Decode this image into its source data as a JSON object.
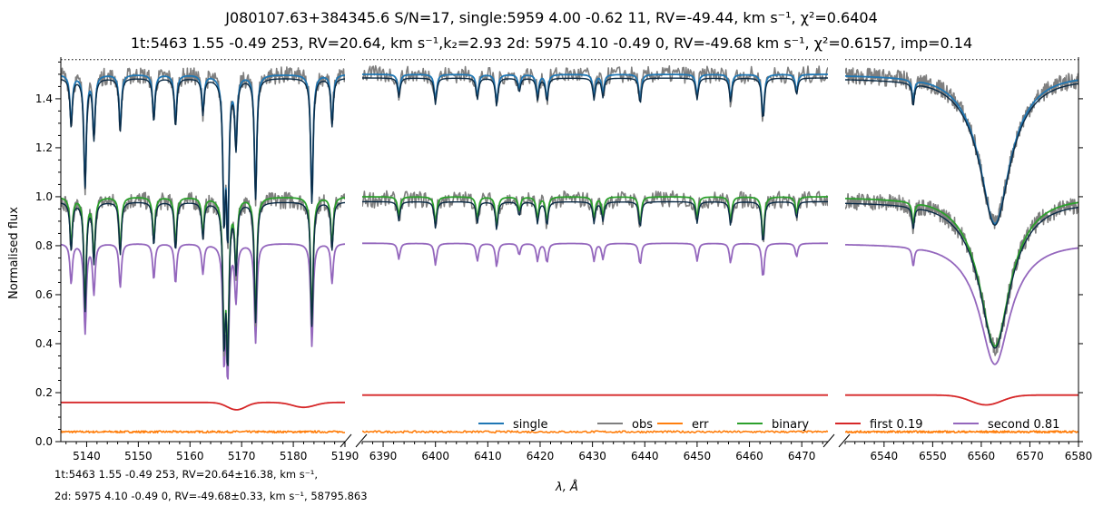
{
  "title": {
    "line1": "J080107.63+384345.6 S/N=17,      single:5959 4.00 -0.62 11, RV=-49.44, km s⁻¹, χ²=0.6404",
    "line2": "1t:5463 1.55 -0.49 253, RV=20.64, km s⁻¹,k₂=2.93 2d: 5975 4.10 -0.49 0, RV=-49.68 km s⁻¹, χ²=0.6157, imp=0.14"
  },
  "footnote": {
    "line1": "1t:5463 1.55 -0.49 253, RV=20.64±16.38, km s⁻¹,",
    "line2": "2d: 5975 4.10 -0.49 0, RV=-49.68±0.33, km s⁻¹, 58795.863"
  },
  "colors": {
    "single": "#1f77b4",
    "obs": "#7f7f7f",
    "err": "#ff7f0e",
    "binary": "#2ca02c",
    "first": "#d62728",
    "second": "#9467bd",
    "dark_overlay": "#0a2a45"
  },
  "chart_data": {
    "type": "line",
    "xlabel": "λ, Å",
    "ylabel": "Normalised flux",
    "ylim": [
      0,
      1.57
    ],
    "yticks": [
      0.0,
      0.2,
      0.4,
      0.6,
      0.8,
      1.0,
      1.2,
      1.4
    ],
    "ytick_labels": [
      "0.0",
      "0.2",
      "0.4",
      "0.6",
      "0.8",
      "1.0",
      "1.2",
      "1.4"
    ],
    "dotted_reference_y": 1.56,
    "grid": false,
    "legend_location": "lower right",
    "legend": [
      "single",
      "obs",
      "err",
      "binary",
      "first 0.19",
      "second 0.81"
    ],
    "panels": [
      {
        "xlim": [
          5135,
          5190
        ],
        "xticks": [
          5140,
          5150,
          5160,
          5170,
          5180,
          5190
        ],
        "xtick_labels": [
          "5140",
          "5150",
          "5160",
          "5170",
          "5180",
          "5190"
        ],
        "lines": [
          [
            5137.0,
            0.2
          ],
          [
            5139.7,
            0.45
          ],
          [
            5141.4,
            0.25
          ],
          [
            5146.5,
            0.22
          ],
          [
            5153.0,
            0.18
          ],
          [
            5157.2,
            0.2
          ],
          [
            5162.5,
            0.15
          ],
          [
            5166.6,
            0.55
          ],
          [
            5167.3,
            0.62
          ],
          [
            5168.9,
            0.28
          ],
          [
            5172.7,
            0.5
          ],
          [
            5183.6,
            0.52
          ],
          [
            5187.5,
            0.2
          ]
        ],
        "first_dips": [
          [
            5169.0,
            0.03,
            2.5
          ],
          [
            5182.0,
            0.02,
            3.0
          ]
        ],
        "first_level": 0.16
      },
      {
        "xlim": [
          6386,
          6475
        ],
        "xticks": [
          6390,
          6400,
          6410,
          6420,
          6430,
          6440,
          6450,
          6460,
          6470
        ],
        "xtick_labels": [
          "6390",
          "6400",
          "6410",
          "6420",
          "6430",
          "6440",
          "6450",
          "6460",
          "6470"
        ],
        "lines": [
          [
            6393.0,
            0.08
          ],
          [
            6400.0,
            0.11
          ],
          [
            6408.0,
            0.09
          ],
          [
            6411.7,
            0.12
          ],
          [
            6416.0,
            0.06
          ],
          [
            6419.5,
            0.09
          ],
          [
            6421.3,
            0.1
          ],
          [
            6430.3,
            0.09
          ],
          [
            6432.0,
            0.08
          ],
          [
            6439.1,
            0.11
          ],
          [
            6450.0,
            0.09
          ],
          [
            6456.4,
            0.1
          ],
          [
            6462.6,
            0.18
          ],
          [
            6469.0,
            0.07
          ]
        ],
        "first_dips": [],
        "first_level": 0.19
      },
      {
        "xlim": [
          6532,
          6580
        ],
        "xticks": [
          6540,
          6550,
          6560,
          6570,
          6580
        ],
        "xtick_labels": [
          "6540",
          "6550",
          "6560",
          "6570",
          "6580"
        ],
        "lines": [
          [
            6546.0,
            0.09
          ],
          [
            6562.8,
            0.0
          ]
        ],
        "halpha": {
          "center": 6562.8,
          "depth": 0.55,
          "width": 3.6
        },
        "first_dips": [
          [
            6561.0,
            0.04,
            4.5
          ]
        ],
        "first_level": 0.19
      }
    ],
    "offset_single": 0.5,
    "second_scale": 0.81,
    "err_level": 0.04
  }
}
